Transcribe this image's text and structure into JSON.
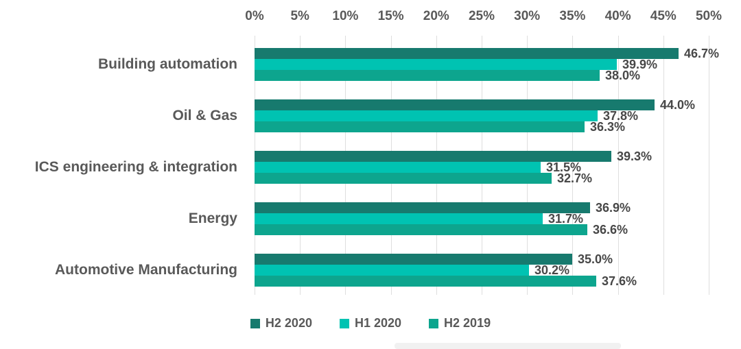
{
  "chart_data": {
    "type": "bar",
    "orientation": "horizontal",
    "title": "",
    "categories": [
      "Building automation",
      "Oil & Gas",
      "ICS engineering & integration",
      "Energy",
      "Automotive Manufacturing"
    ],
    "series": [
      {
        "name": "H2 2020",
        "color": "#177a6e",
        "values": [
          46.7,
          44.0,
          39.3,
          36.9,
          35.0
        ],
        "labels": [
          "46.7%",
          "44.0%",
          "39.3%",
          "36.9%",
          "35.0%"
        ]
      },
      {
        "name": "H1 2020",
        "color": "#00c3b2",
        "values": [
          39.9,
          37.8,
          31.5,
          31.7,
          30.2
        ],
        "labels": [
          "39.9%",
          "37.8%",
          "31.5%",
          "31.7%",
          "30.2%"
        ]
      },
      {
        "name": "H2 2019",
        "color": "#0da58e",
        "values": [
          38.0,
          36.3,
          32.7,
          36.6,
          37.6
        ],
        "labels": [
          "38.0%",
          "36.3%",
          "32.7%",
          "36.6%",
          "37.6%"
        ]
      }
    ],
    "x_axis": {
      "position": "top",
      "min": 0,
      "max": 50,
      "step": 5,
      "ticks": [
        "0%",
        "5%",
        "10%",
        "15%",
        "20%",
        "25%",
        "30%",
        "35%",
        "40%",
        "45%",
        "50%"
      ]
    },
    "grid": true,
    "legend_position": "bottom",
    "colors": {
      "background": "#ffffff",
      "axis_text": "#595959",
      "category_text": "#595959",
      "value_text": "#474747",
      "gridline": "#dedede",
      "tick_mark": "#c6c6c6"
    }
  }
}
